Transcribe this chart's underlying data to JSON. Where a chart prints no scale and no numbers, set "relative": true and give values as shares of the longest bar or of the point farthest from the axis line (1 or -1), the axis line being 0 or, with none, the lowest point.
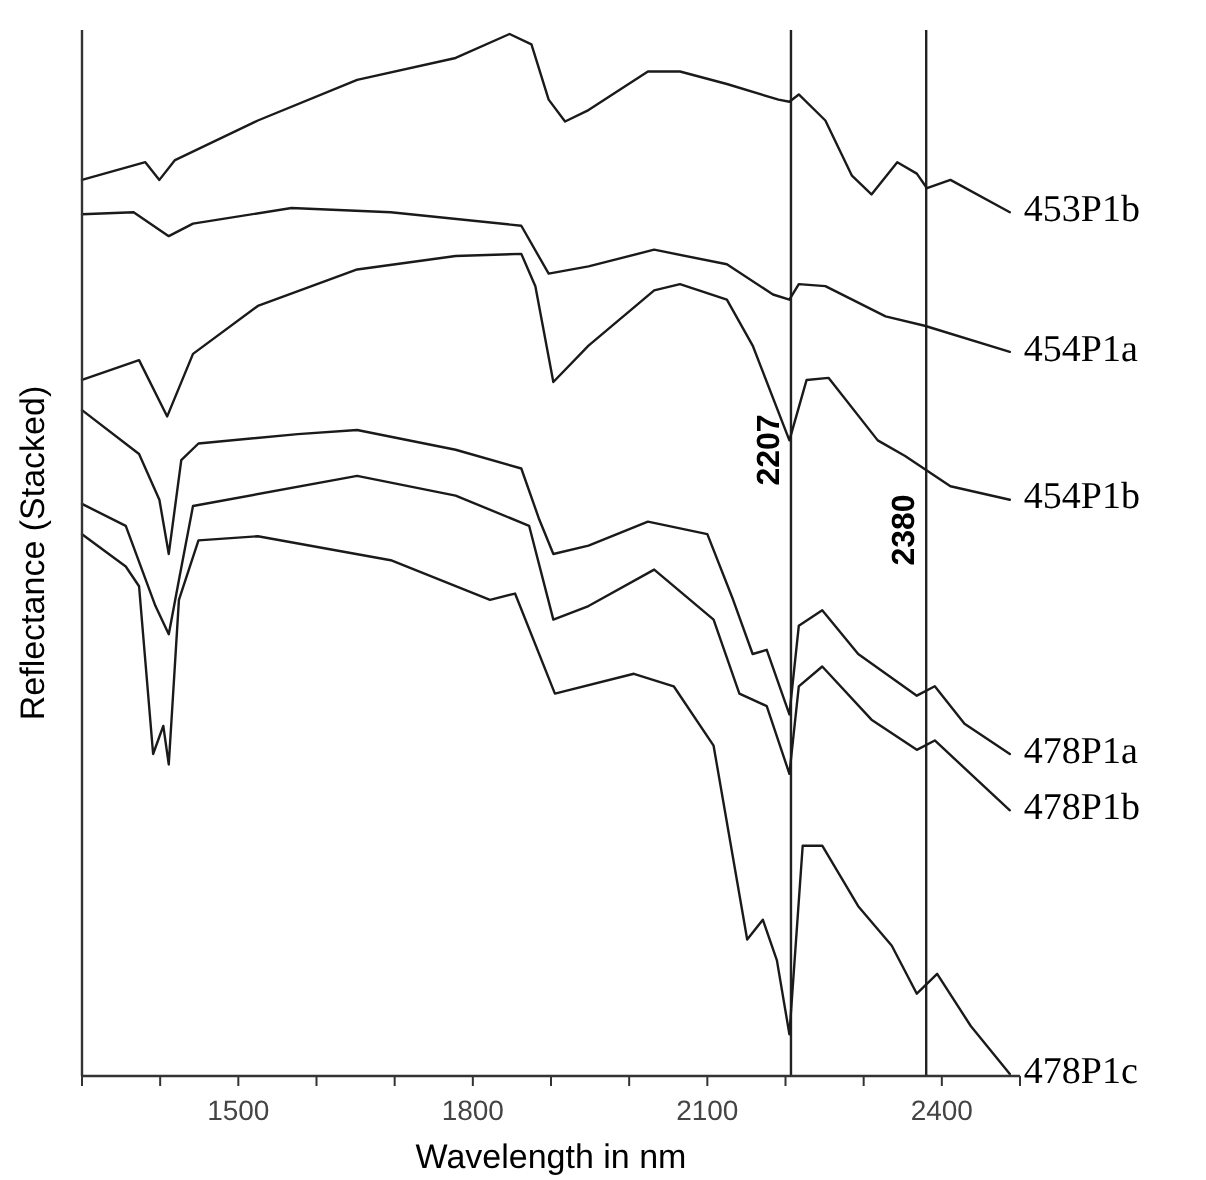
{
  "chart_data": {
    "type": "line",
    "relative": true,
    "xlabel": "Wavelength in nm",
    "ylabel": "Reflectance (Stacked)",
    "xlim": [
      1300,
      2500
    ],
    "xticks": [
      {
        "value": 1300,
        "label": null
      },
      {
        "value": 1400,
        "label": null
      },
      1500,
      {
        "value": 1600,
        "label": null
      },
      {
        "value": 1700,
        "label": null
      },
      1800,
      {
        "value": 1900,
        "label": null
      },
      {
        "value": 2000,
        "label": null
      },
      2100,
      {
        "value": 2200,
        "label": null
      },
      {
        "value": 2300,
        "label": null
      },
      2400,
      {
        "value": 2500,
        "label": null
      }
    ],
    "ref_lines": [
      {
        "axis": "x",
        "value": 2207,
        "label": "2207",
        "color": "#222222"
      },
      {
        "axis": "x",
        "value": 2380,
        "label": "2380",
        "color": "#222222"
      }
    ],
    "series": [
      {
        "name": "453P1b",
        "color": "#1a1a1a",
        "x": [
          1300,
          1381,
          1399,
          1419,
          1525,
          1652,
          1778,
          1847,
          1875,
          1897,
          1918,
          1948,
          2024,
          2065,
          2125,
          2191,
          2205,
          2217,
          2251,
          2285,
          2310,
          2343,
          2368,
          2381,
          2411,
          2487
        ],
        "values": [
          0.86,
          0.877,
          0.86,
          0.879,
          0.917,
          0.956,
          0.977,
          1.0,
          0.99,
          0.937,
          0.916,
          0.927,
          0.964,
          0.964,
          0.952,
          0.937,
          0.935,
          0.942,
          0.917,
          0.864,
          0.846,
          0.877,
          0.866,
          0.852,
          0.86,
          0.829
        ]
      },
      {
        "name": "454P1a",
        "color": "#1a1a1a",
        "x": [
          1300,
          1366,
          1411,
          1442,
          1568,
          1695,
          1862,
          1897,
          1948,
          2032,
          2125,
          2184,
          2205,
          2217,
          2251,
          2328,
          2378,
          2487
        ],
        "values": [
          0.827,
          0.829,
          0.806,
          0.818,
          0.833,
          0.829,
          0.816,
          0.77,
          0.777,
          0.793,
          0.779,
          0.75,
          0.745,
          0.76,
          0.758,
          0.729,
          0.72,
          0.695
        ]
      },
      {
        "name": "454P1b",
        "color": "#1a1a1a",
        "x": [
          1300,
          1373,
          1409,
          1442,
          1525,
          1652,
          1778,
          1862,
          1880,
          1903,
          1948,
          2032,
          2065,
          2125,
          2158,
          2205,
          2227,
          2255,
          2318,
          2353,
          2411,
          2487
        ],
        "values": [
          0.668,
          0.687,
          0.633,
          0.693,
          0.739,
          0.774,
          0.787,
          0.789,
          0.758,
          0.666,
          0.701,
          0.754,
          0.76,
          0.745,
          0.701,
          0.61,
          0.668,
          0.67,
          0.61,
          0.595,
          0.566,
          0.553
        ]
      },
      {
        "name": "478P1a",
        "color": "#1a1a1a",
        "x": [
          1300,
          1373,
          1399,
          1411,
          1427,
          1449,
          1576,
          1652,
          1778,
          1862,
          1885,
          1903,
          1948,
          2024,
          2100,
          2133,
          2158,
          2176,
          2205,
          2217,
          2247,
          2293,
          2368,
          2391,
          2429,
          2487
        ],
        "values": [
          0.639,
          0.597,
          0.553,
          0.501,
          0.591,
          0.607,
          0.616,
          0.62,
          0.601,
          0.583,
          0.534,
          0.501,
          0.509,
          0.532,
          0.52,
          0.457,
          0.405,
          0.409,
          0.347,
          0.432,
          0.447,
          0.405,
          0.365,
          0.374,
          0.338,
          0.309
        ]
      },
      {
        "name": "478P1b",
        "color": "#1a1a1a",
        "x": [
          1300,
          1356,
          1394,
          1411,
          1424,
          1442,
          1652,
          1778,
          1872,
          1903,
          1948,
          2032,
          2108,
          2141,
          2176,
          2205,
          2217,
          2247,
          2310,
          2368,
          2391,
          2487
        ],
        "values": [
          0.549,
          0.528,
          0.451,
          0.424,
          0.476,
          0.547,
          0.576,
          0.557,
          0.528,
          0.438,
          0.451,
          0.486,
          0.438,
          0.367,
          0.355,
          0.29,
          0.374,
          0.393,
          0.342,
          0.313,
          0.322,
          0.255
        ]
      },
      {
        "name": "478P1c",
        "color": "#1a1a1a",
        "x": [
          1300,
          1356,
          1373,
          1391,
          1404,
          1411,
          1424,
          1449,
          1525,
          1695,
          1822,
          1854,
          1905,
          2006,
          2057,
          2108,
          2151,
          2171,
          2189,
          2205,
          2222,
          2247,
          2293,
          2336,
          2368,
          2394,
          2437,
          2487
        ],
        "values": [
          0.52,
          0.489,
          0.47,
          0.309,
          0.336,
          0.299,
          0.457,
          0.514,
          0.518,
          0.495,
          0.457,
          0.463,
          0.367,
          0.386,
          0.374,
          0.317,
          0.131,
          0.15,
          0.111,
          0.04,
          0.221,
          0.221,
          0.163,
          0.125,
          0.079,
          0.098,
          0.048,
          0.002
        ]
      }
    ]
  }
}
